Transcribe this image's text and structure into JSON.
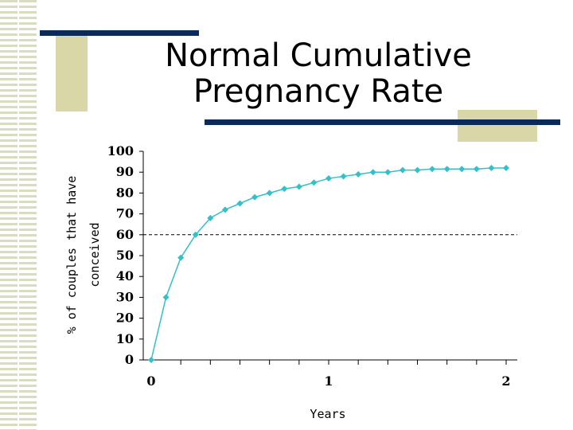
{
  "title_line1": "Normal Cumulative",
  "title_line2": "Pregnancy Rate",
  "chart_data": {
    "type": "line",
    "ylabel_line1": "% of couples that have",
    "ylabel_line2": "conceived",
    "xlabel": "Years",
    "ylim": [
      0,
      100
    ],
    "xlim": [
      0,
      2.02
    ],
    "y_ticks": [
      0,
      10,
      20,
      30,
      40,
      50,
      60,
      70,
      80,
      90,
      100
    ],
    "x_tick_labels": [
      {
        "value": 0,
        "label": "0"
      },
      {
        "value": 1,
        "label": "1"
      },
      {
        "value": 2,
        "label": "2"
      }
    ],
    "reference_line_y": 60,
    "series": [
      {
        "color": "#33c0c8",
        "x": [
          0,
          0.0833,
          0.1667,
          0.25,
          0.3333,
          0.4167,
          0.5,
          0.5833,
          0.6667,
          0.75,
          0.8333,
          0.9167,
          1.0,
          1.0833,
          1.1667,
          1.25,
          1.3333,
          1.4167,
          1.5,
          1.5833,
          1.6667,
          1.75,
          1.8333,
          1.9167,
          2.0
        ],
        "values": [
          0,
          30,
          49,
          60,
          68,
          72,
          75,
          78,
          80,
          82,
          83,
          85,
          87,
          88,
          89,
          90,
          90,
          91,
          91,
          91.5,
          91.5,
          91.5,
          91.5,
          92,
          92
        ]
      }
    ]
  }
}
